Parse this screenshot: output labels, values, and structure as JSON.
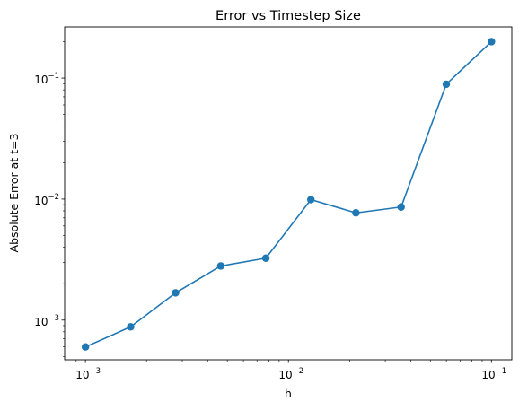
{
  "chart_data": {
    "type": "line",
    "title": "Error vs Timestep Size",
    "xlabel": "h",
    "ylabel": "Absolute Error at t=3",
    "xscale": "log",
    "yscale": "log",
    "xlim": [
      0.00079,
      0.126
    ],
    "ylim": [
      0.00047,
      0.265
    ],
    "grid": false,
    "x_ticks": [
      {
        "value": 0.001,
        "base": "10",
        "exp": "−3"
      },
      {
        "value": 0.01,
        "base": "10",
        "exp": "−2"
      },
      {
        "value": 0.1,
        "base": "10",
        "exp": "−1"
      }
    ],
    "y_ticks": [
      {
        "value": 0.001,
        "base": "10",
        "exp": "−3"
      },
      {
        "value": 0.01,
        "base": "10",
        "exp": "−2"
      },
      {
        "value": 0.1,
        "base": "10",
        "exp": "−1"
      }
    ],
    "series": [
      {
        "color": "#1f77b4",
        "marker": "circle",
        "x": [
          0.001,
          0.00167,
          0.00278,
          0.00464,
          0.00774,
          0.0129,
          0.0215,
          0.0359,
          0.0599,
          0.1
        ],
        "y": [
          0.0006,
          0.00088,
          0.00168,
          0.0028,
          0.00325,
          0.0099,
          0.0077,
          0.0086,
          0.089,
          0.2
        ]
      }
    ]
  }
}
